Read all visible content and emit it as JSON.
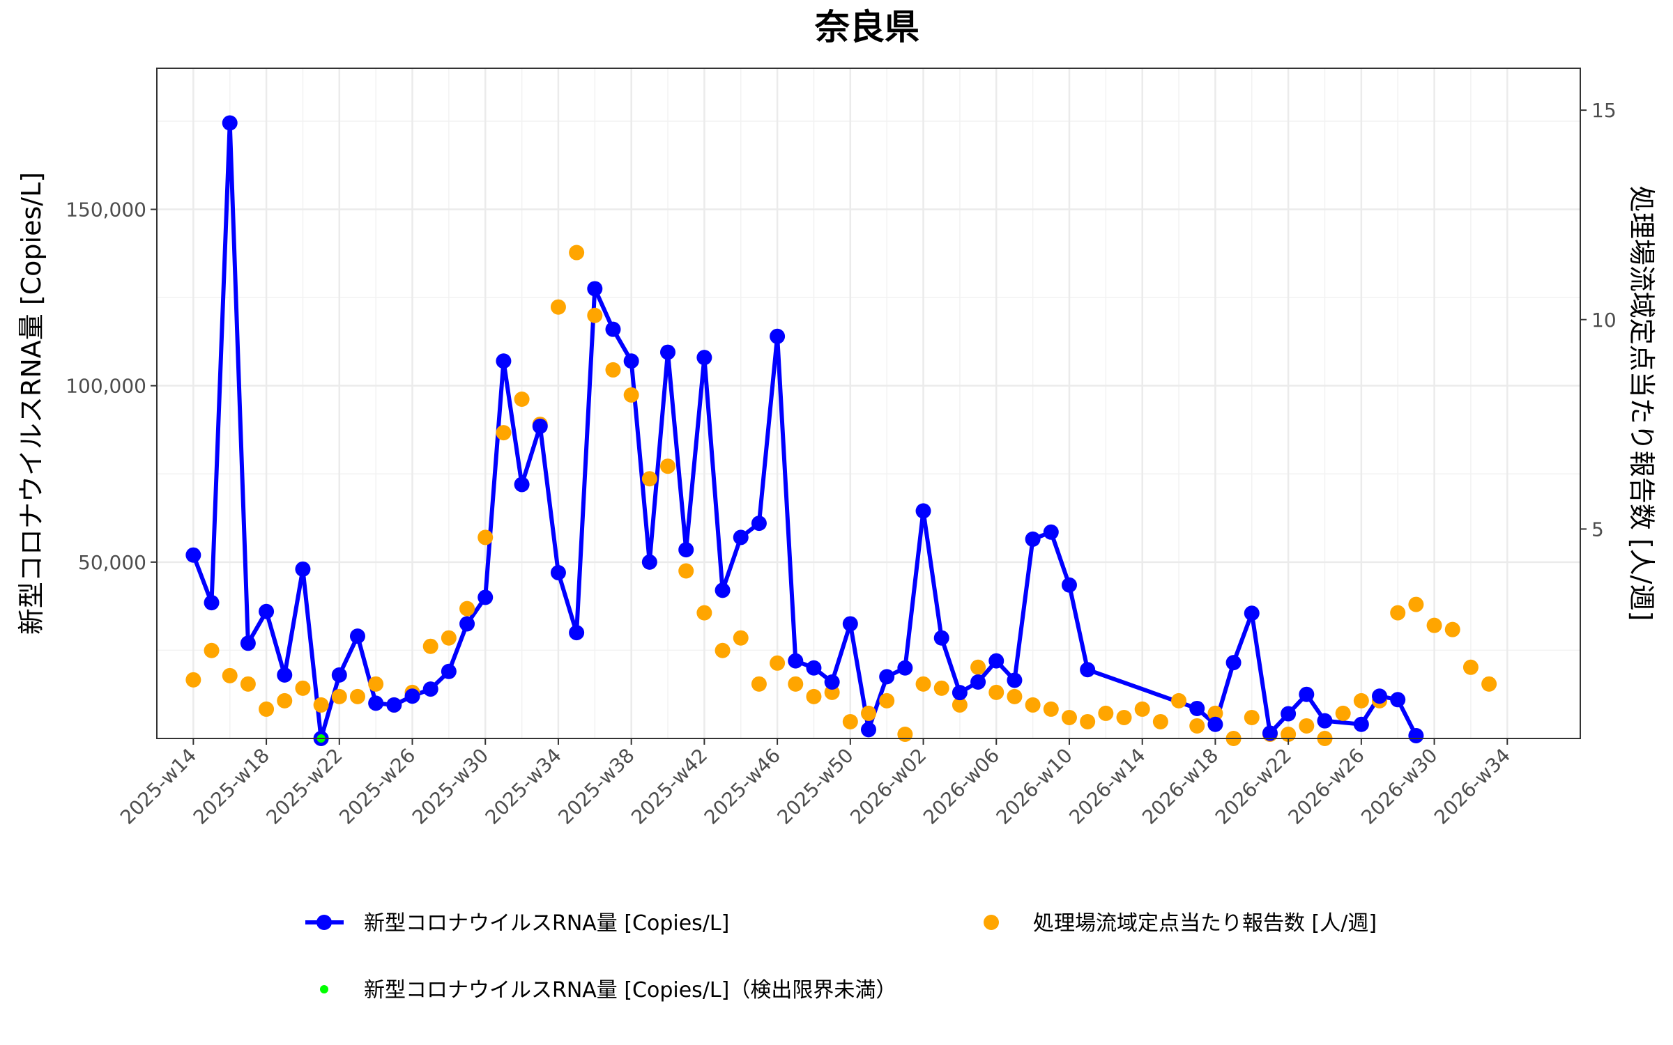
{
  "chart_data": {
    "type": "line",
    "title": "奈良県",
    "ylabel": "新型コロナウイルスRNA量 [Copies/L]",
    "y2label": "処理場流域定点当たり報告数 [人/週]",
    "ylim": [
      0,
      190000
    ],
    "y2lim": [
      0,
      16
    ],
    "yticks": [
      50000,
      100000,
      150000
    ],
    "ytick_labels": [
      "50,000",
      "100,000",
      "150,000"
    ],
    "y2ticks": [
      5,
      10,
      15
    ],
    "y2tick_labels": [
      "5",
      "10",
      "15"
    ],
    "x_index_range": [
      -2,
      76
    ],
    "xticks": [
      {
        "i": 0,
        "label": "2025-w14"
      },
      {
        "i": 4,
        "label": "2025-w18"
      },
      {
        "i": 8,
        "label": "2025-w22"
      },
      {
        "i": 12,
        "label": "2025-w26"
      },
      {
        "i": 16,
        "label": "2025-w30"
      },
      {
        "i": 20,
        "label": "2025-w34"
      },
      {
        "i": 24,
        "label": "2025-w38"
      },
      {
        "i": 28,
        "label": "2025-w42"
      },
      {
        "i": 32,
        "label": "2025-w46"
      },
      {
        "i": 36,
        "label": "2025-w50"
      },
      {
        "i": 40,
        "label": "2026-w02"
      },
      {
        "i": 44,
        "label": "2026-w06"
      },
      {
        "i": 48,
        "label": "2026-w10"
      },
      {
        "i": 52,
        "label": "2026-w14"
      },
      {
        "i": 56,
        "label": "2026-w18"
      },
      {
        "i": 60,
        "label": "2026-w22"
      },
      {
        "i": 64,
        "label": "2026-w26"
      },
      {
        "i": 68,
        "label": "2026-w30"
      },
      {
        "i": 72,
        "label": "2026-w34"
      }
    ],
    "grid": true,
    "legend_position": "bottom",
    "series": [
      {
        "name": "新型コロナウイルスRNA量 [Copies/L]",
        "axis": "left",
        "color": "#0000ff",
        "style": "line+points",
        "points": [
          [
            0,
            52000
          ],
          [
            1,
            38500
          ],
          [
            2,
            174500
          ],
          [
            3,
            27000
          ],
          [
            4,
            36000
          ],
          [
            5,
            18000
          ],
          [
            6,
            48000
          ],
          [
            7,
            0
          ],
          [
            8,
            18000
          ],
          [
            9,
            29000
          ],
          [
            10,
            10000
          ],
          [
            11,
            9500
          ],
          [
            12,
            12000
          ],
          [
            13,
            14000
          ],
          [
            14,
            19000
          ],
          [
            15,
            32500
          ],
          [
            16,
            40000
          ],
          [
            17,
            107000
          ],
          [
            18,
            72000
          ],
          [
            19,
            88500
          ],
          [
            20,
            47000
          ],
          [
            21,
            30000
          ],
          [
            22,
            127500
          ],
          [
            23,
            116000
          ],
          [
            24,
            107000
          ],
          [
            25,
            50000
          ],
          [
            26,
            109500
          ],
          [
            27,
            53500
          ],
          [
            28,
            108000
          ],
          [
            29,
            42000
          ],
          [
            30,
            57000
          ],
          [
            31,
            61000
          ],
          [
            32,
            114000
          ],
          [
            33,
            22000
          ],
          [
            34,
            20000
          ],
          [
            35,
            16000
          ],
          [
            36,
            32500
          ],
          [
            37,
            2500
          ],
          [
            38,
            17500
          ],
          [
            39,
            20000
          ],
          [
            40,
            64500
          ],
          [
            41,
            28500
          ],
          [
            42,
            13000
          ],
          [
            43,
            16000
          ],
          [
            44,
            22000
          ],
          [
            45,
            16500
          ],
          [
            46,
            56500
          ],
          [
            47,
            58500
          ],
          [
            48,
            43500
          ],
          [
            49,
            19500
          ],
          [
            55,
            8500
          ],
          [
            56,
            4000
          ],
          [
            57,
            21500
          ],
          [
            58,
            35500
          ],
          [
            59,
            1500
          ],
          [
            60,
            7000
          ],
          [
            61,
            12500
          ],
          [
            62,
            5000
          ],
          [
            64,
            4000
          ],
          [
            65,
            12000
          ],
          [
            66,
            11000
          ],
          [
            67,
            800
          ]
        ]
      },
      {
        "name": "処理場流域定点当たり報告数 [人/週]",
        "axis": "right",
        "color": "#ffa500",
        "style": "points",
        "points": [
          [
            0,
            1.4
          ],
          [
            1,
            2.1
          ],
          [
            2,
            1.5
          ],
          [
            3,
            1.3
          ],
          [
            4,
            0.7
          ],
          [
            5,
            0.9
          ],
          [
            6,
            1.2
          ],
          [
            7,
            0.8
          ],
          [
            8,
            1.0
          ],
          [
            9,
            1.0
          ],
          [
            10,
            1.3
          ],
          [
            11,
            0.8
          ],
          [
            12,
            1.1
          ],
          [
            13,
            2.2
          ],
          [
            14,
            2.4
          ],
          [
            15,
            3.1
          ],
          [
            16,
            4.8
          ],
          [
            17,
            7.3
          ],
          [
            18,
            8.1
          ],
          [
            19,
            7.5
          ],
          [
            20,
            10.3
          ],
          [
            21,
            11.6
          ],
          [
            22,
            10.1
          ],
          [
            23,
            8.8
          ],
          [
            24,
            8.2
          ],
          [
            25,
            6.2
          ],
          [
            26,
            6.5
          ],
          [
            27,
            4.0
          ],
          [
            28,
            3.0
          ],
          [
            29,
            2.1
          ],
          [
            30,
            2.4
          ],
          [
            31,
            1.3
          ],
          [
            32,
            1.8
          ],
          [
            33,
            1.3
          ],
          [
            34,
            1.0
          ],
          [
            35,
            1.1
          ],
          [
            36,
            0.4
          ],
          [
            37,
            0.6
          ],
          [
            38,
            0.9
          ],
          [
            39,
            0.1
          ],
          [
            40,
            1.3
          ],
          [
            41,
            1.2
          ],
          [
            42,
            0.8
          ],
          [
            43,
            1.7
          ],
          [
            44,
            1.1
          ],
          [
            45,
            1.0
          ],
          [
            46,
            0.8
          ],
          [
            47,
            0.7
          ],
          [
            48,
            0.5
          ],
          [
            49,
            0.4
          ],
          [
            50,
            0.6
          ],
          [
            51,
            0.5
          ],
          [
            52,
            0.7
          ],
          [
            53,
            0.4
          ],
          [
            54,
            0.9
          ],
          [
            55,
            0.3
          ],
          [
            56,
            0.6
          ],
          [
            57,
            0.0
          ],
          [
            58,
            0.5
          ],
          [
            59,
            0.1
          ],
          [
            60,
            0.1
          ],
          [
            61,
            0.3
          ],
          [
            62,
            0.0
          ],
          [
            63,
            0.6
          ],
          [
            64,
            0.9
          ],
          [
            65,
            0.9
          ],
          [
            66,
            3.0
          ],
          [
            67,
            3.2
          ],
          [
            68,
            2.7
          ],
          [
            69,
            2.6
          ],
          [
            70,
            1.7
          ],
          [
            71,
            1.3
          ]
        ]
      },
      {
        "name": "新型コロナウイルスRNA量 [Copies/L]（検出限界未満）",
        "axis": "left",
        "color": "#00ff00",
        "style": "points",
        "points": [
          [
            7,
            0
          ]
        ]
      }
    ]
  },
  "legend": {
    "item1": "新型コロナウイルスRNA量 [Copies/L]",
    "item2": "処理場流域定点当たり報告数 [人/週]",
    "item3": "新型コロナウイルスRNA量 [Copies/L]（検出限界未満）"
  }
}
